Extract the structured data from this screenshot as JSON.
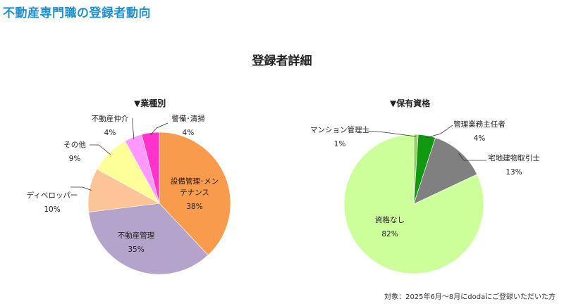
{
  "header": {
    "title": "不動産専門職の登録者動向",
    "section_title": "登録者詳細",
    "footnote": "対象：2025年6月〜8月にdodaにご登録いただいた方"
  },
  "chart_data": [
    {
      "type": "pie",
      "title": "▼業種別",
      "slices": [
        {
          "name": "設備管理･メン\nテナンス",
          "value": 38,
          "label": "38%",
          "color": "#f99b4c"
        },
        {
          "name": "不動産管理",
          "value": 35,
          "label": "35%",
          "color": "#b4a4cc"
        },
        {
          "name": "ディベロッパー",
          "value": 10,
          "label": "10%",
          "color": "#fbc597"
        },
        {
          "name": "その他",
          "value": 9,
          "label": "9%",
          "color": "#ffff99"
        },
        {
          "name": "不動産仲介",
          "value": 4,
          "label": "4%",
          "color": "#ff99ff"
        },
        {
          "name": "警備･清掃",
          "value": 4,
          "label": "4%",
          "color": "#ff33cc"
        }
      ]
    },
    {
      "type": "pie",
      "title": "▼保有資格",
      "slices": [
        {
          "name": "マンション管理士",
          "value": 1,
          "label": "1%",
          "color": "#99cc66"
        },
        {
          "name": "管理業務主任者",
          "value": 4,
          "label": "4%",
          "color": "#109910"
        },
        {
          "name": "宅地建物取引士",
          "value": 13,
          "label": "13%",
          "color": "#808080"
        },
        {
          "name": "資格なし",
          "value": 82,
          "label": "82%",
          "color": "#ccff99"
        }
      ]
    }
  ]
}
